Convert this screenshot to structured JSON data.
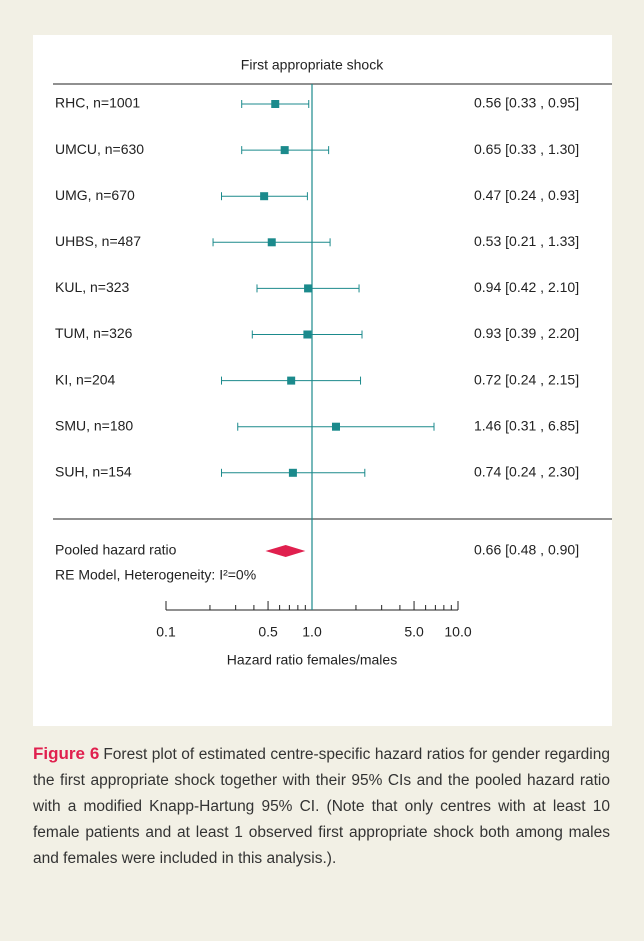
{
  "chart_data": {
    "type": "forest",
    "title": "First appropriate shock",
    "xlabel": "Hazard ratio females/males",
    "log_x": true,
    "color": "#1b8a8c",
    "pooled_color": "#e0204e",
    "xlim": [
      0.1,
      10
    ],
    "xticks": [
      0.1,
      0.5,
      {
        "value": 1,
        "label": "1.0"
      },
      {
        "value": 5,
        "label": "5.0"
      },
      {
        "value": 10,
        "label": "10.0"
      }
    ],
    "minor_xticks": [
      0.2,
      0.3,
      0.4,
      0.6,
      0.7,
      0.8,
      0.9,
      2,
      3,
      4,
      6,
      7,
      8,
      9
    ],
    "reference_line": 1,
    "categories": [
      "RHC, n=1001",
      "UMCU, n=630",
      "UMG, n=670",
      "UHBS, n=487",
      "KUL, n=323",
      "TUM, n=326",
      "KI, n=204",
      "SMU, n=180",
      "SUH, n=154"
    ],
    "values": [
      0.56,
      0.65,
      0.47,
      0.53,
      0.94,
      0.93,
      0.72,
      1.46,
      0.74
    ],
    "lower": [
      0.33,
      0.33,
      0.24,
      0.21,
      0.42,
      0.39,
      0.24,
      0.31,
      0.24
    ],
    "upper": [
      0.95,
      1.3,
      0.93,
      1.33,
      2.1,
      2.2,
      2.15,
      6.85,
      2.3
    ],
    "value_labels": [
      "0.56 [0.33 , 0.95]",
      "0.65 [0.33 , 1.30]",
      "0.47 [0.24 , 0.93]",
      "0.53 [0.21 , 1.33]",
      "0.94 [0.42 , 2.10]",
      "0.93 [0.39 , 2.20]",
      "0.72 [0.24 , 2.15]",
      "1.46 [0.31 , 6.85]",
      "0.74 [0.24 , 2.30]"
    ],
    "pooled": {
      "label": "Pooled hazard ratio",
      "model": "RE Model, Heterogeneity: I²=0%",
      "value": 0.66,
      "lower": 0.48,
      "upper": 0.9,
      "value_label": "0.66 [0.48 , 0.90]"
    }
  },
  "caption": {
    "label": "Figure 6",
    "text": "Forest plot of estimated centre-specific hazard ratios for gender regarding the first appropriate shock together with their 95% CIs and the pooled hazard ratio with a modified Knapp-Hartung 95% CI. (Note that only centres with at least 10 female patients and at least 1 observed first appropriate shock both among males and females were included in this analysis.)."
  }
}
